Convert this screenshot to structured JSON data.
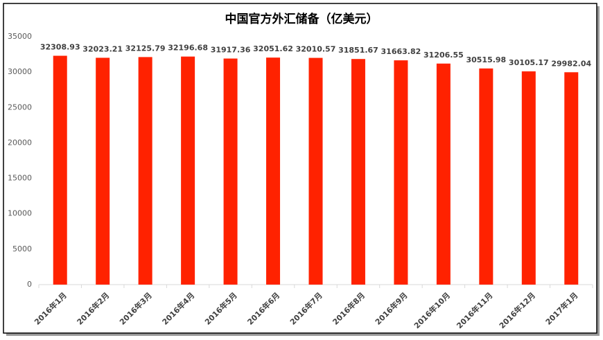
{
  "chart_data": {
    "type": "bar",
    "title": "中国官方外汇储备（亿美元）",
    "categories": [
      "2016年1月",
      "2016年2月",
      "2016年3月",
      "2016年4月",
      "2016年5月",
      "2016年6月",
      "2016年7月",
      "2016年8月",
      "2016年9月",
      "2016年10月",
      "2016年11月",
      "2016年12月",
      "2017年1月"
    ],
    "values": [
      32308.93,
      32023.21,
      32125.79,
      32196.68,
      31917.36,
      32051.62,
      32010.57,
      31851.67,
      31663.82,
      31206.55,
      30515.98,
      30105.17,
      29982.04
    ],
    "color": "#ff2200",
    "ylim": [
      0,
      35000
    ],
    "yticks": [
      0,
      5000,
      10000,
      15000,
      20000,
      25000,
      30000,
      35000
    ],
    "grid": false
  }
}
